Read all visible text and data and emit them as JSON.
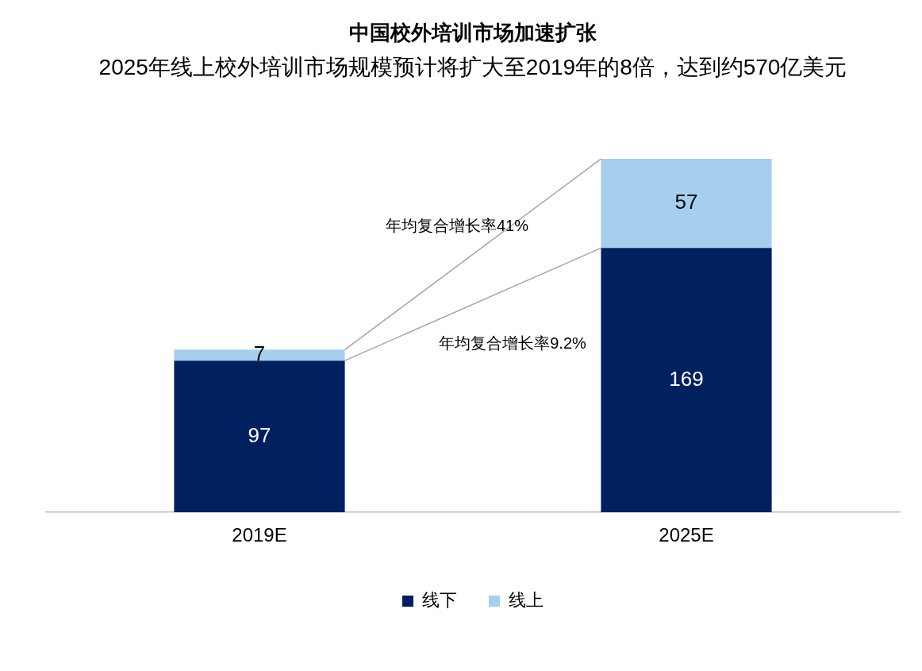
{
  "chart_data": {
    "type": "bar",
    "title": "中国校外培训市场加速扩张",
    "subtitle": "2025年线上校外培训市场规模预计将扩大至2019年的8倍，达到约570亿美元",
    "categories": [
      "2019E",
      "2025E"
    ],
    "stacked": true,
    "data_labels": true,
    "legend": "bottom",
    "grid": false,
    "series": [
      {
        "name": "线下",
        "color": "#002060",
        "values": [
          97,
          169
        ]
      },
      {
        "name": "线上",
        "color": "#a6cfee",
        "values": [
          7,
          57
        ]
      }
    ],
    "annotations": [
      "年均复合增长率41%",
      "年均复合增长率9.2%"
    ]
  }
}
